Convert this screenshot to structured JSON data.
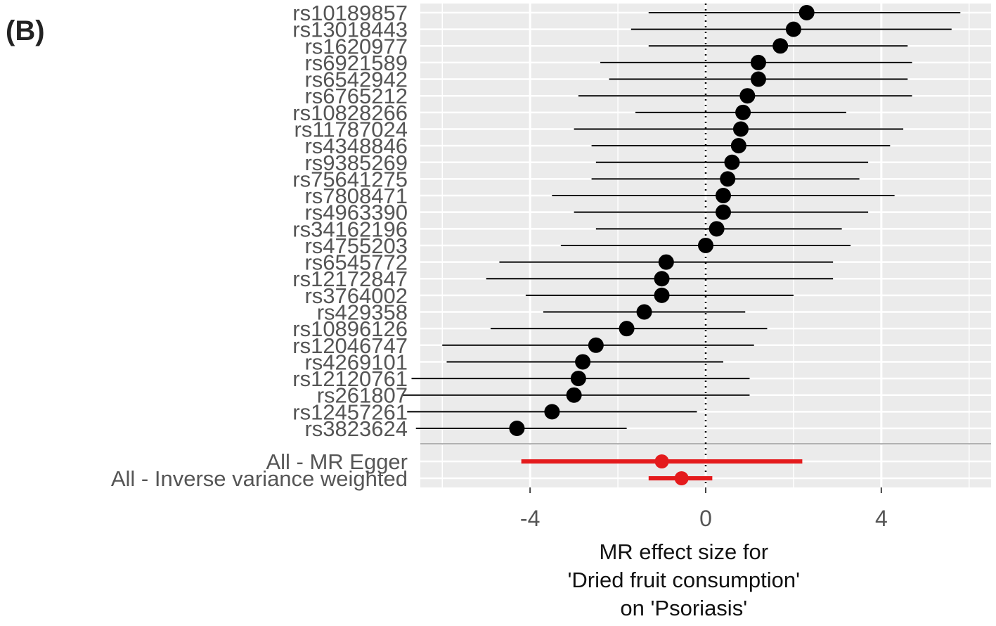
{
  "panel_label": "(B)",
  "colors": {
    "panel_bg": "#ebebeb",
    "grid": "#ffffff",
    "snp": "#000000",
    "summary": "#e41a1c",
    "zero_line": "#000000",
    "separator": "#999999"
  },
  "chart_data": {
    "type": "forest",
    "xlim": [
      -6.5,
      6.5
    ],
    "x_ticks": [
      "-4",
      "0",
      "4"
    ],
    "x_tick_values": [
      -4,
      0,
      4
    ],
    "xlabel_lines": [
      "MR effect size for",
      "'Dried fruit consumption'",
      "on 'Psoriasis'"
    ],
    "reference_line": 0,
    "snps": [
      {
        "label": "rs10189857",
        "est": 2.3,
        "lo": -1.3,
        "hi": 5.8
      },
      {
        "label": "rs13018443",
        "est": 2.0,
        "lo": -1.7,
        "hi": 5.6
      },
      {
        "label": "rs1620977",
        "est": 1.7,
        "lo": -1.3,
        "hi": 4.6
      },
      {
        "label": "rs6921589",
        "est": 1.2,
        "lo": -2.4,
        "hi": 4.7
      },
      {
        "label": "rs6542942",
        "est": 1.2,
        "lo": -2.2,
        "hi": 4.6
      },
      {
        "label": "rs6765212",
        "est": 0.95,
        "lo": -2.9,
        "hi": 4.7
      },
      {
        "label": "rs10828266",
        "est": 0.85,
        "lo": -1.6,
        "hi": 3.2
      },
      {
        "label": "rs11787024",
        "est": 0.8,
        "lo": -3.0,
        "hi": 4.5
      },
      {
        "label": "rs4348846",
        "est": 0.75,
        "lo": -2.6,
        "hi": 4.2
      },
      {
        "label": "rs9385269",
        "est": 0.6,
        "lo": -2.5,
        "hi": 3.7
      },
      {
        "label": "rs75641275",
        "est": 0.5,
        "lo": -2.6,
        "hi": 3.5
      },
      {
        "label": "rs7808471",
        "est": 0.4,
        "lo": -3.5,
        "hi": 4.3
      },
      {
        "label": "rs4963390",
        "est": 0.4,
        "lo": -3.0,
        "hi": 3.7
      },
      {
        "label": "rs34162196",
        "est": 0.25,
        "lo": -2.5,
        "hi": 3.1
      },
      {
        "label": "rs4755203",
        "est": 0.0,
        "lo": -3.3,
        "hi": 3.3
      },
      {
        "label": "rs6545772",
        "est": -0.9,
        "lo": -4.7,
        "hi": 2.9
      },
      {
        "label": "rs12172847",
        "est": -1.0,
        "lo": -5.0,
        "hi": 2.9
      },
      {
        "label": "rs3764002",
        "est": -1.0,
        "lo": -4.1,
        "hi": 2.0
      },
      {
        "label": "rs429358",
        "est": -1.4,
        "lo": -3.7,
        "hi": 0.9
      },
      {
        "label": "rs10896126",
        "est": -1.8,
        "lo": -4.9,
        "hi": 1.4
      },
      {
        "label": "rs12046747",
        "est": -2.5,
        "lo": -6.0,
        "hi": 1.1
      },
      {
        "label": "rs4269101",
        "est": -2.8,
        "lo": -5.9,
        "hi": 0.4
      },
      {
        "label": "rs12120761",
        "est": -2.9,
        "lo": -6.7,
        "hi": 1.0
      },
      {
        "label": "rs261807",
        "est": -3.0,
        "lo": -6.9,
        "hi": 1.0
      },
      {
        "label": "rs12457261",
        "est": -3.5,
        "lo": -6.8,
        "hi": -0.2
      },
      {
        "label": "rs3823624",
        "est": -4.3,
        "lo": -6.6,
        "hi": -1.8
      }
    ],
    "summary": [
      {
        "label": "All - MR Egger",
        "est": -1.0,
        "lo": -4.2,
        "hi": 2.2
      },
      {
        "label": "All - Inverse variance weighted",
        "est": -0.55,
        "lo": -1.3,
        "hi": 0.15
      }
    ]
  }
}
